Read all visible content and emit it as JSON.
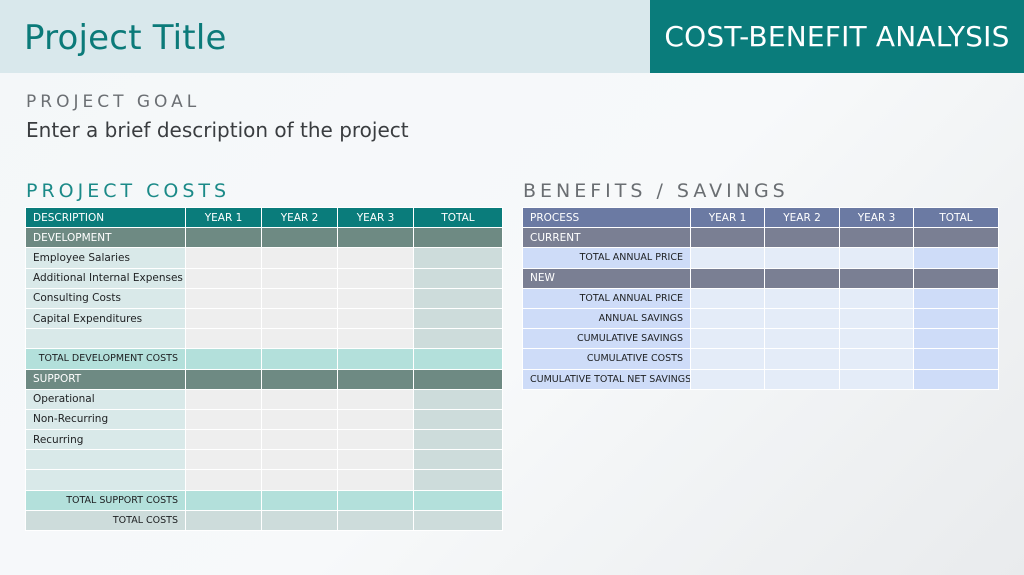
{
  "header": {
    "project_title": "Project Title",
    "analysis_title": "COST-BENEFIT ANALYSIS"
  },
  "goal": {
    "label": "PROJECT GOAL",
    "text": "Enter a brief description of the project"
  },
  "costs": {
    "section_title": "PROJECT COSTS",
    "columns": [
      "DESCRIPTION",
      "YEAR 1",
      "YEAR 2",
      "YEAR 3",
      "TOTAL"
    ],
    "development": {
      "label": "DEVELOPMENT",
      "items": [
        "Employee Salaries",
        "Additional Internal Expenses",
        "Consulting Costs",
        "Capital Expenditures",
        ""
      ],
      "subtotal_label": "TOTAL DEVELOPMENT COSTS"
    },
    "support": {
      "label": "SUPPORT",
      "items": [
        "Operational",
        "Non-Recurring",
        "Recurring",
        "",
        ""
      ],
      "subtotal_label": "TOTAL SUPPORT COSTS"
    },
    "total_label": "TOTAL COSTS"
  },
  "benefits": {
    "section_title": "BENEFITS / SAVINGS",
    "columns": [
      "PROCESS",
      "YEAR 1",
      "YEAR 2",
      "YEAR 3",
      "TOTAL"
    ],
    "current": {
      "label": "CURRENT",
      "items": [
        "TOTAL ANNUAL PRICE"
      ]
    },
    "new": {
      "label": "NEW",
      "items": [
        "TOTAL ANNUAL PRICE",
        "ANNUAL SAVINGS",
        "CUMULATIVE SAVINGS",
        "CUMULATIVE COSTS",
        "CUMULATIVE TOTAL NET SAVINGS"
      ]
    }
  },
  "colors": {
    "teal": "#0a7c7b",
    "header_band": "#d9e8ec",
    "benefits_header": "#6b7aa3"
  }
}
